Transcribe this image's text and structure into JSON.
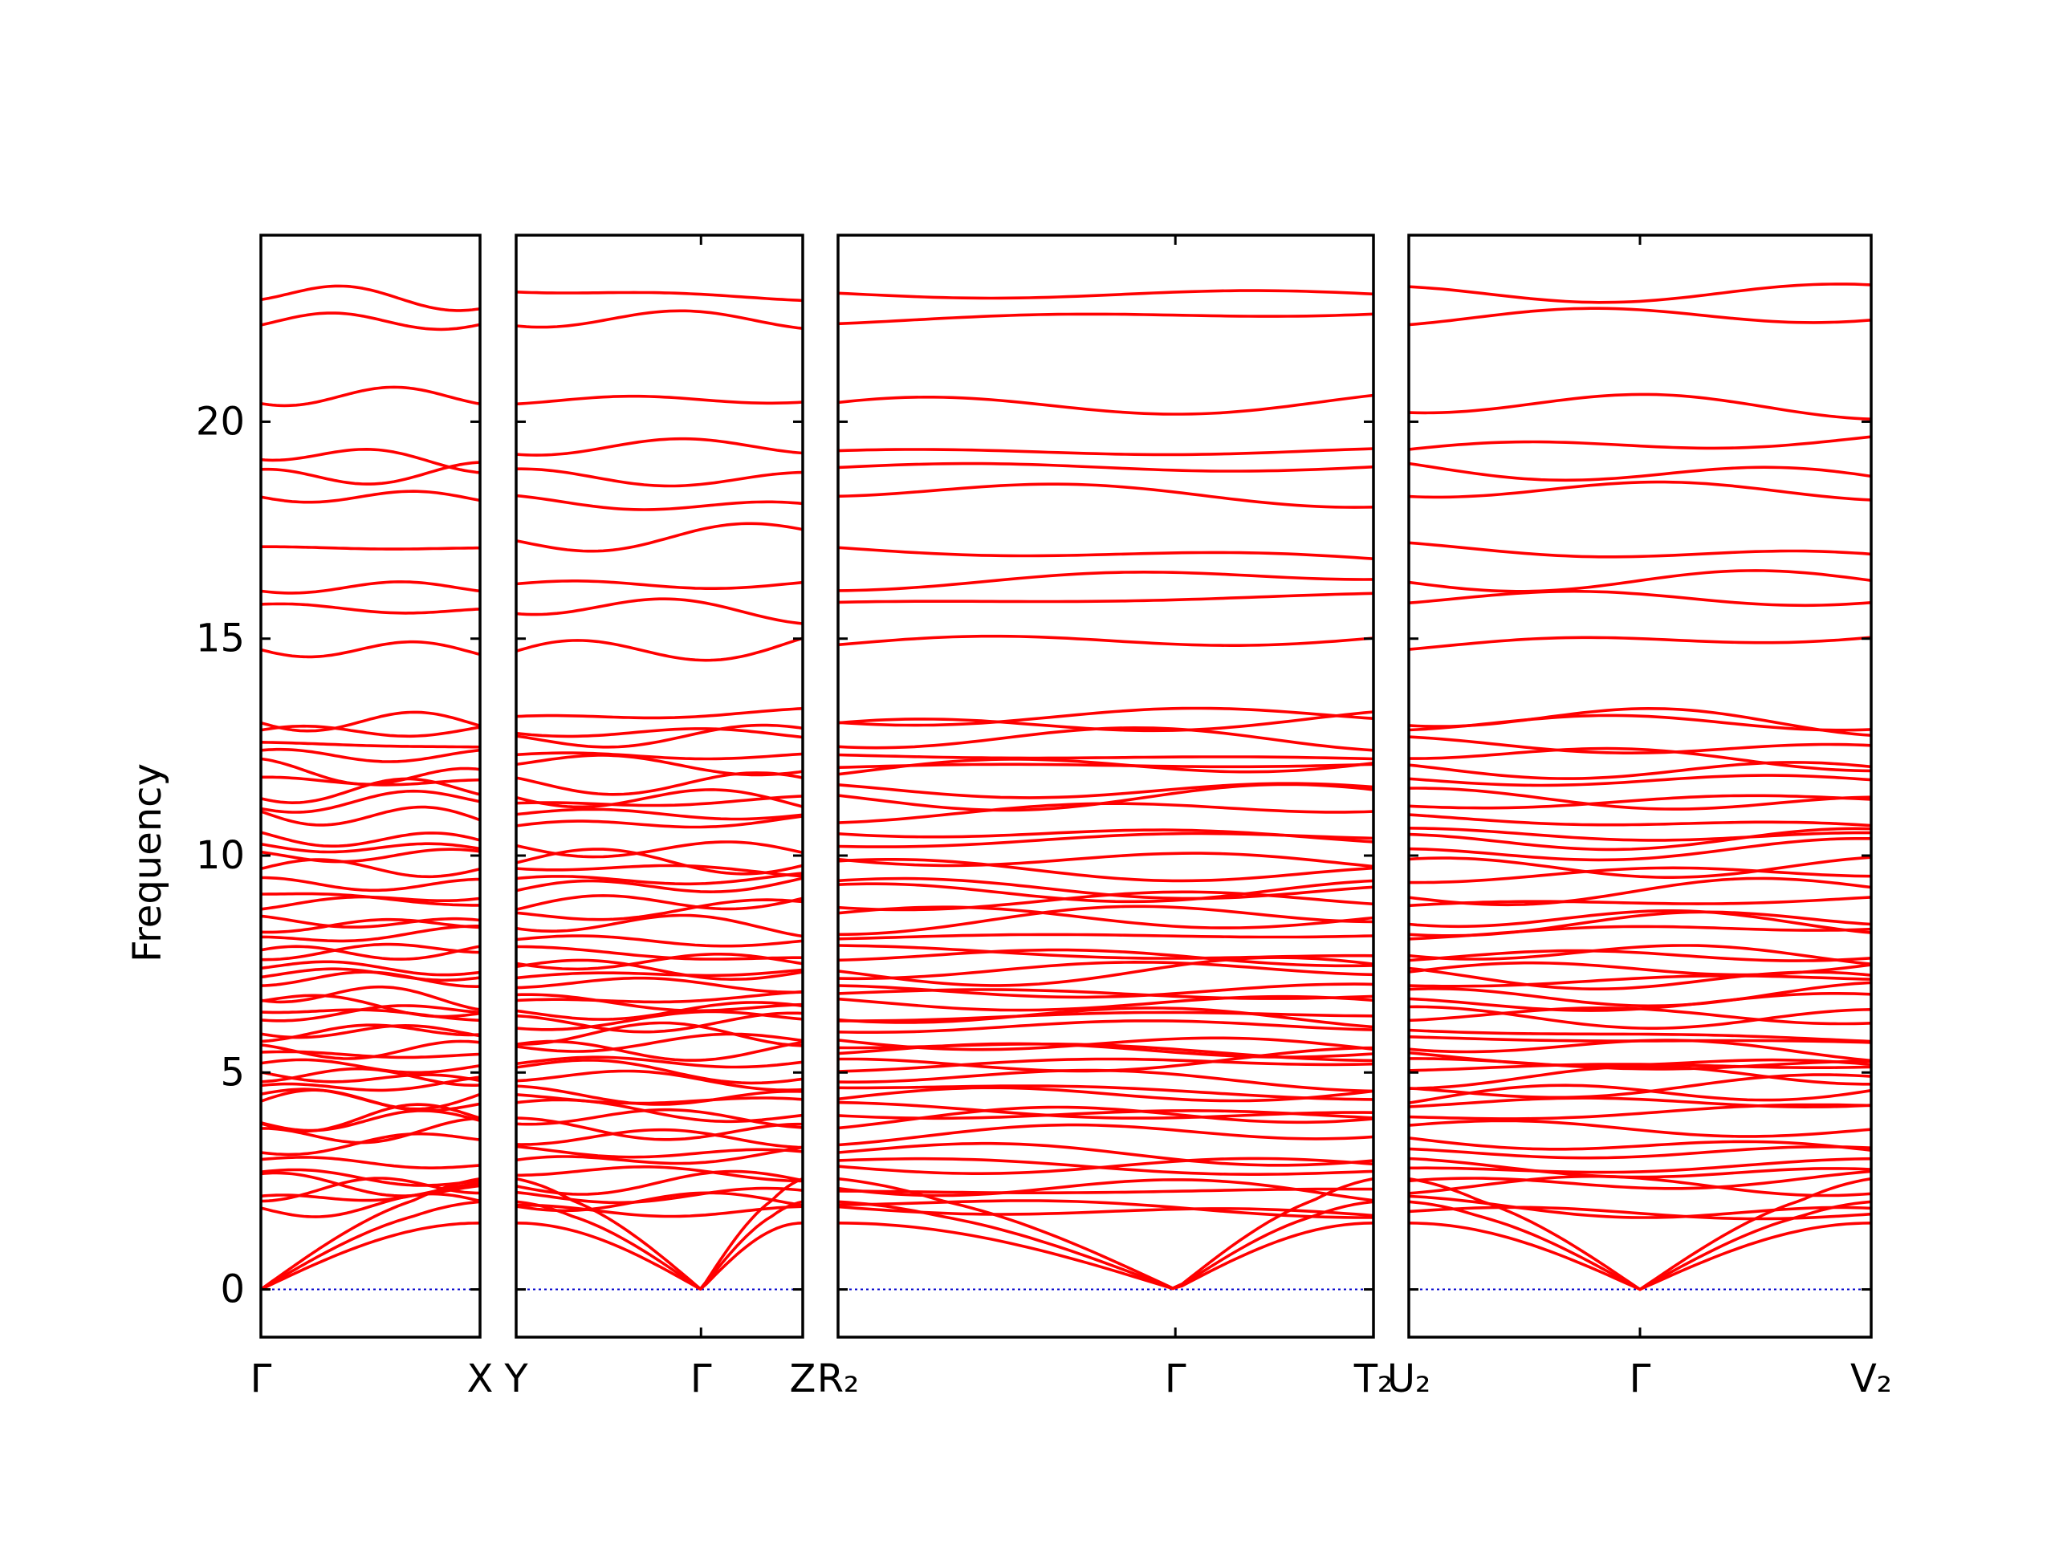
{
  "chart_data": {
    "type": "line",
    "title": "",
    "ylabel": "Frequency",
    "ylim": [
      -1.1,
      24.3
    ],
    "yticks": [
      0,
      5,
      10,
      15,
      20
    ],
    "grid": false,
    "legend": "none",
    "colors": {
      "bands": "#ff0000",
      "zero_line": "#0000cc",
      "axes": "#000000"
    },
    "segments": [
      {
        "name": "Γ-X",
        "labels": [
          "Γ",
          "X"
        ],
        "tick_positions": [
          0,
          1
        ]
      },
      {
        "name": "Y-Γ-Z",
        "labels": [
          "Y",
          "Γ",
          "Z"
        ],
        "tick_positions": [
          0,
          0.645,
          1
        ]
      },
      {
        "name": "R2-Γ-T2",
        "labels": [
          "R₂",
          "Γ",
          "T₂"
        ],
        "tick_positions": [
          0,
          0.63,
          1
        ]
      },
      {
        "name": "U2-Γ-V2",
        "labels": [
          "U₂",
          "Γ",
          "V₂"
        ],
        "tick_positions": [
          0,
          0.5,
          1
        ]
      }
    ],
    "bands": {
      "optical_start": [
        1.85,
        2.05,
        2.25,
        2.5,
        2.75,
        3.0,
        3.25,
        3.5,
        3.75,
        4.0,
        4.2,
        4.45,
        4.65,
        4.85,
        5.05,
        5.25,
        5.45,
        5.6,
        5.8,
        6.0,
        6.2,
        6.4,
        6.6,
        6.8,
        7.0,
        7.2,
        7.4,
        7.6,
        7.85,
        8.1,
        8.35,
        8.6,
        8.85,
        9.15,
        9.45,
        9.7,
        10.0,
        10.3,
        10.6,
        10.9,
        11.2,
        11.5,
        11.8,
        12.05,
        12.3,
        12.6,
        12.9,
        13.2
      ],
      "high_modes": [
        14.8,
        15.8,
        16.2,
        17.1,
        18.3,
        18.9,
        19.3,
        20.4,
        22.3,
        23.0
      ],
      "acoustic_max": [
        1.7,
        1.9,
        2.1
      ]
    }
  }
}
